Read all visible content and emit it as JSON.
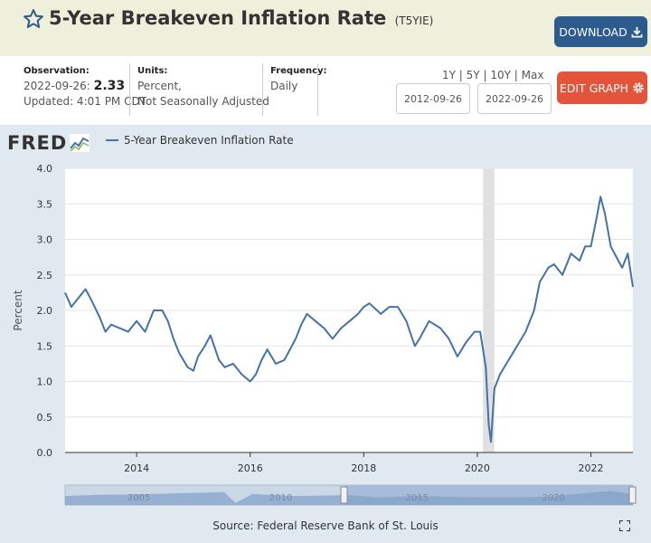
{
  "header": {
    "title": "5-Year Breakeven Inflation Rate",
    "series_id": "(T5YIE)",
    "download_label": "DOWNLOAD",
    "star_icon": "star-outline-icon"
  },
  "meta": {
    "observation_label": "Observation:",
    "observation_date": "2022-09-26:",
    "observation_value": "2.33",
    "updated": "Updated: 4:01 PM CDT",
    "units_label": "Units:",
    "units_line1": "Percent,",
    "units_line2": "Not Seasonally Adjusted",
    "frequency_label": "Frequency:",
    "frequency_value": "Daily"
  },
  "controls": {
    "range_1y": "1Y",
    "range_5y": "5Y",
    "range_10y": "10Y",
    "range_max": "Max",
    "range_sep": "|",
    "start_date": "2012-09-26",
    "end_date": "2022-09-26",
    "edit_graph_label": "EDIT GRAPH"
  },
  "graph": {
    "logo": "FRED",
    "source": "Source: Federal Reserve Bank of St. Louis",
    "line_color": "#4572a7",
    "recession_color": "#e0e0e0"
  },
  "chart_data": {
    "type": "line",
    "title": "",
    "xlabel": "",
    "ylabel": "Percent",
    "ylim": [
      0,
      4
    ],
    "xlim": [
      2012.74,
      2022.74
    ],
    "yticks": [
      "0.0",
      "0.5",
      "1.0",
      "1.5",
      "2.0",
      "2.5",
      "3.0",
      "3.5",
      "4.0"
    ],
    "xticks": [
      "2014",
      "2016",
      "2018",
      "2020",
      "2022"
    ],
    "recession": [
      2020.1,
      2020.3
    ],
    "navigator_labels": [
      "2005",
      "2010",
      "2015",
      "2020"
    ],
    "series": [
      {
        "name": "5-Year Breakeven Inflation Rate",
        "x": [
          2012.74,
          2012.85,
          2013.0,
          2013.1,
          2013.2,
          2013.35,
          2013.45,
          2013.55,
          2013.7,
          2013.85,
          2014.0,
          2014.15,
          2014.3,
          2014.45,
          2014.55,
          2014.65,
          2014.75,
          2014.9,
          2015.0,
          2015.08,
          2015.2,
          2015.3,
          2015.45,
          2015.55,
          2015.7,
          2015.85,
          2016.0,
          2016.1,
          2016.2,
          2016.3,
          2016.45,
          2016.6,
          2016.8,
          2016.9,
          2017.0,
          2017.15,
          2017.3,
          2017.45,
          2017.6,
          2017.75,
          2017.9,
          2018.0,
          2018.1,
          2018.3,
          2018.45,
          2018.6,
          2018.75,
          2018.9,
          2018.98,
          2019.15,
          2019.35,
          2019.5,
          2019.65,
          2019.8,
          2019.95,
          2020.05,
          2020.15,
          2020.2,
          2020.24,
          2020.3,
          2020.4,
          2020.55,
          2020.7,
          2020.85,
          2021.0,
          2021.1,
          2021.25,
          2021.35,
          2021.5,
          2021.65,
          2021.8,
          2021.9,
          2022.0,
          2022.1,
          2022.17,
          2022.25,
          2022.35,
          2022.45,
          2022.55,
          2022.65,
          2022.74
        ],
        "y": [
          2.25,
          2.05,
          2.2,
          2.3,
          2.15,
          1.9,
          1.7,
          1.8,
          1.75,
          1.7,
          1.85,
          1.7,
          2.0,
          2.0,
          1.85,
          1.6,
          1.4,
          1.2,
          1.15,
          1.35,
          1.5,
          1.65,
          1.3,
          1.2,
          1.25,
          1.1,
          1.0,
          1.1,
          1.3,
          1.45,
          1.25,
          1.3,
          1.6,
          1.8,
          1.95,
          1.85,
          1.75,
          1.6,
          1.75,
          1.85,
          1.95,
          2.05,
          2.1,
          1.95,
          2.05,
          2.05,
          1.85,
          1.5,
          1.6,
          1.85,
          1.75,
          1.6,
          1.35,
          1.55,
          1.7,
          1.7,
          1.2,
          0.4,
          0.15,
          0.9,
          1.1,
          1.3,
          1.5,
          1.7,
          2.0,
          2.4,
          2.6,
          2.65,
          2.5,
          2.8,
          2.7,
          2.9,
          2.9,
          3.3,
          3.6,
          3.35,
          2.9,
          2.75,
          2.6,
          2.8,
          2.33
        ]
      }
    ]
  }
}
